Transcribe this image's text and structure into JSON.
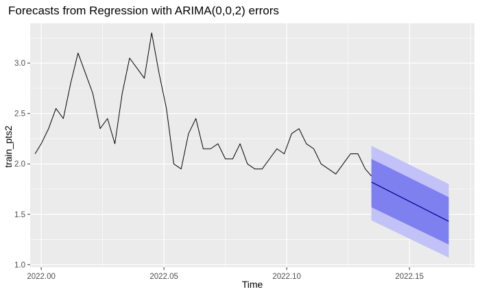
{
  "chart_data": {
    "type": "line",
    "title": "Forecasts from Regression with ARIMA(0,0,2) errors",
    "xlabel": "Time",
    "ylabel": "train_pts2",
    "xlim": [
      1.9955,
      2.1765
    ],
    "ylim": [
      0.975,
      3.395
    ],
    "x_ticks": [
      2.0,
      2.05,
      2.1,
      2.15
    ],
    "x_tick_labels": [
      "2022.00",
      "2022.05",
      "2022.10",
      "2022.15"
    ],
    "y_ticks": [
      1.0,
      1.5,
      2.0,
      2.5,
      3.0
    ],
    "y_tick_labels": [
      "1.0",
      "1.5",
      "2.0",
      "2.5",
      "3.0"
    ],
    "grid": true,
    "background": "#ebebeb",
    "series": [
      {
        "kind": "observed",
        "color": "#000000",
        "x": [
          1.9975,
          2.0,
          2.003,
          2.006,
          2.009,
          2.012,
          2.015,
          2.018,
          2.021,
          2.024,
          2.027,
          2.03,
          2.033,
          2.036,
          2.039,
          2.042,
          2.045,
          2.048,
          2.051,
          2.054,
          2.057,
          2.06,
          2.063,
          2.066,
          2.069,
          2.072,
          2.075,
          2.078,
          2.081,
          2.084,
          2.087,
          2.09,
          2.093,
          2.096,
          2.099,
          2.102,
          2.105,
          2.108,
          2.111,
          2.114,
          2.117,
          2.12,
          2.123,
          2.126,
          2.129,
          2.132,
          2.1345
        ],
        "y": [
          2.1,
          2.2,
          2.35,
          2.55,
          2.45,
          2.8,
          3.1,
          2.9,
          2.7,
          2.35,
          2.45,
          2.2,
          2.7,
          3.05,
          2.95,
          2.85,
          3.3,
          2.9,
          2.55,
          2.0,
          1.95,
          2.3,
          2.45,
          2.15,
          2.15,
          2.2,
          2.05,
          2.05,
          2.2,
          2.0,
          1.95,
          1.95,
          2.05,
          2.15,
          2.1,
          2.3,
          2.35,
          2.2,
          2.15,
          2.0,
          1.95,
          1.9,
          2.0,
          2.1,
          2.1,
          1.95,
          1.88
        ]
      }
    ],
    "forecast": {
      "x": [
        2.1345,
        2.166
      ],
      "mean": [
        1.82,
        1.43
      ],
      "lower80": [
        1.57,
        1.2
      ],
      "upper80": [
        2.05,
        1.67
      ],
      "lower95": [
        1.44,
        1.07
      ],
      "upper95": [
        2.18,
        1.8
      ],
      "mean_color": "#00008b",
      "band80_color": "#7f80f0",
      "band95_color": "#c2c2f8"
    }
  }
}
